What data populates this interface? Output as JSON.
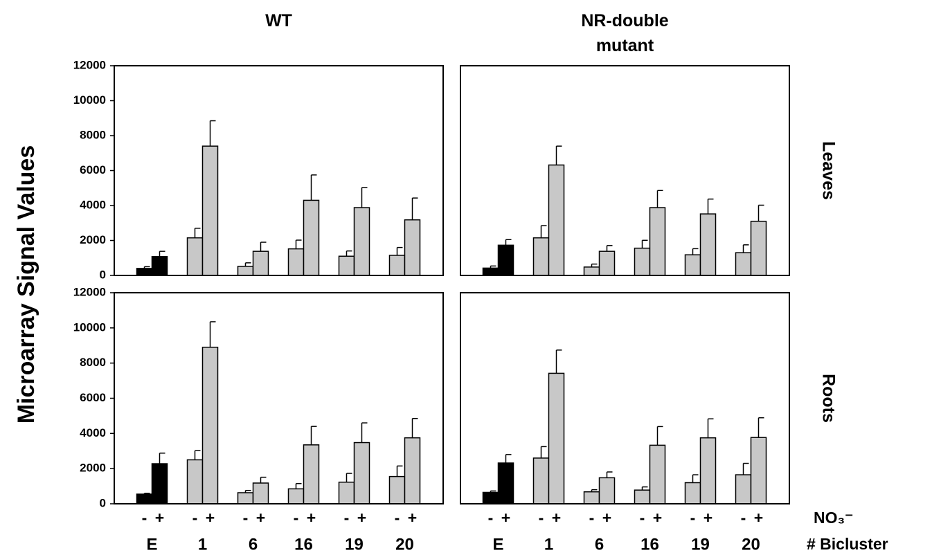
{
  "figure": {
    "ylabel": "Microarray Signal Values",
    "series_label": "NO₃⁻",
    "category_label": "# Bicluster"
  },
  "chart_data": [
    {
      "type": "bar",
      "title": "WT",
      "ylim": [
        0,
        12000
      ],
      "yticks": [
        0,
        2000,
        4000,
        6000,
        8000,
        10000,
        12000
      ],
      "bar_colors": [
        "#000000",
        "#c8c8c8",
        "#c8c8c8",
        "#c8c8c8",
        "#c8c8c8",
        "#c8c8c8"
      ],
      "series": [
        {
          "values": [
            400,
            2150,
            520,
            1520,
            1100,
            1150
          ],
          "errors": [
            100,
            550,
            200,
            500,
            300,
            450
          ]
        },
        {
          "values": [
            1080,
            7400,
            1380,
            4300,
            3880,
            3180
          ],
          "errors": [
            300,
            1450,
            520,
            1450,
            1150,
            1250
          ]
        }
      ]
    },
    {
      "type": "bar",
      "title": "NR-double mutant",
      "side_label": "Leaves",
      "ylim": [
        0,
        12000
      ],
      "bar_colors": [
        "#000000",
        "#c8c8c8",
        "#c8c8c8",
        "#c8c8c8",
        "#c8c8c8",
        "#c8c8c8"
      ],
      "series": [
        {
          "values": [
            420,
            2150,
            480,
            1560,
            1180,
            1300
          ],
          "errors": [
            120,
            700,
            170,
            450,
            350,
            450
          ]
        },
        {
          "values": [
            1730,
            6320,
            1380,
            3880,
            3520,
            3100
          ],
          "errors": [
            320,
            1080,
            330,
            980,
            850,
            920
          ]
        }
      ]
    },
    {
      "type": "bar",
      "ylim": [
        0,
        12000
      ],
      "yticks": [
        0,
        2000,
        4000,
        6000,
        8000,
        10000,
        12000
      ],
      "categories": [
        "E",
        "1",
        "6",
        "16",
        "19",
        "20"
      ],
      "bar_colors": [
        "#000000",
        "#c8c8c8",
        "#c8c8c8",
        "#c8c8c8",
        "#c8c8c8",
        "#c8c8c8"
      ],
      "series": [
        {
          "name": "-",
          "values": [
            550,
            2500,
            630,
            850,
            1230,
            1550
          ],
          "errors": [
            50,
            520,
            130,
            300,
            500,
            600
          ]
        },
        {
          "name": "+",
          "values": [
            2280,
            8900,
            1180,
            3350,
            3480,
            3750
          ],
          "errors": [
            600,
            1450,
            330,
            1050,
            1120,
            1100
          ]
        }
      ]
    },
    {
      "type": "bar",
      "side_label": "Roots",
      "ylim": [
        0,
        12000
      ],
      "categories": [
        "E",
        "1",
        "6",
        "16",
        "19",
        "20"
      ],
      "bar_colors": [
        "#000000",
        "#c8c8c8",
        "#c8c8c8",
        "#c8c8c8",
        "#c8c8c8",
        "#c8c8c8"
      ],
      "series": [
        {
          "name": "-",
          "values": [
            650,
            2600,
            680,
            780,
            1200,
            1650
          ],
          "errors": [
            80,
            650,
            120,
            180,
            450,
            650
          ]
        },
        {
          "name": "+",
          "values": [
            2320,
            7420,
            1480,
            3330,
            3750,
            3770
          ],
          "errors": [
            480,
            1320,
            330,
            1060,
            1080,
            1120
          ]
        }
      ]
    }
  ]
}
